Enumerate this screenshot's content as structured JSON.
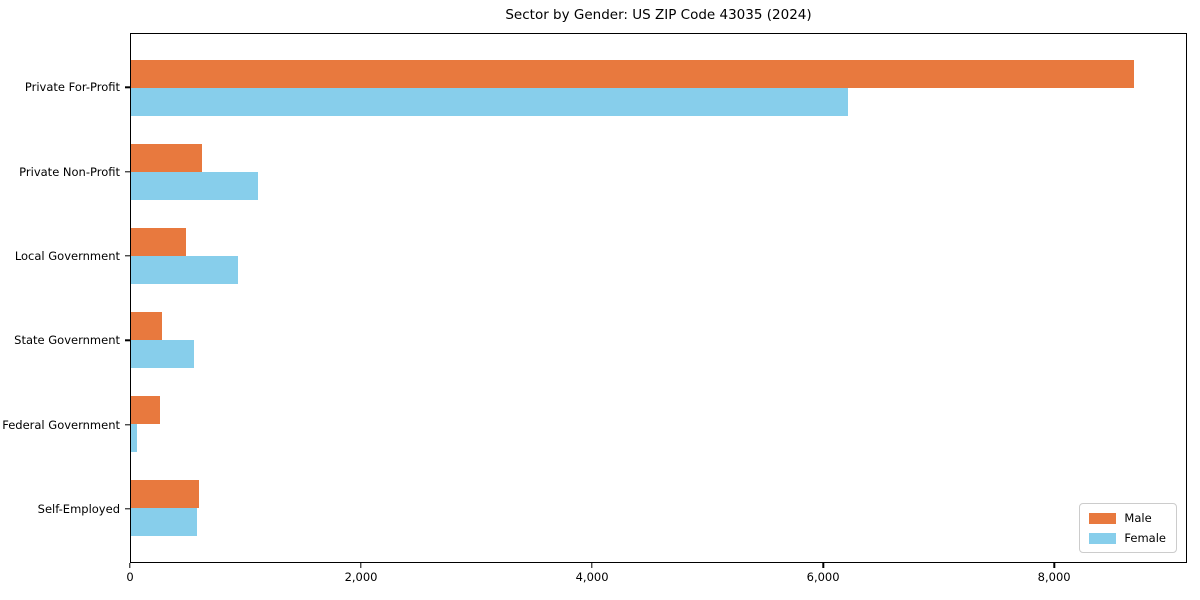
{
  "chart_data": {
    "type": "bar",
    "orientation": "horizontal",
    "title": "Sector by Gender: US ZIP Code 43035 (2024)",
    "categories": [
      "Private For-Profit",
      "Private Non-Profit",
      "Local Government",
      "State Government",
      "Federal Government",
      "Self-Employed"
    ],
    "series": [
      {
        "name": "Male",
        "color": "#e8793e",
        "values": [
          8700,
          620,
          480,
          270,
          250,
          590
        ]
      },
      {
        "name": "Female",
        "color": "#87ceeb",
        "values": [
          6220,
          1100,
          930,
          550,
          50,
          570
        ]
      }
    ],
    "xlim": [
      0,
      9150
    ],
    "xticks": [
      {
        "value": 0,
        "label": "0"
      },
      {
        "value": 2000,
        "label": "2,000"
      },
      {
        "value": 4000,
        "label": "4,000"
      },
      {
        "value": 6000,
        "label": "6,000"
      },
      {
        "value": 8000,
        "label": "8,000"
      }
    ],
    "grid": false,
    "legend_position": "lower right",
    "frame_color": "#000000",
    "background_color": "#ffffff"
  }
}
